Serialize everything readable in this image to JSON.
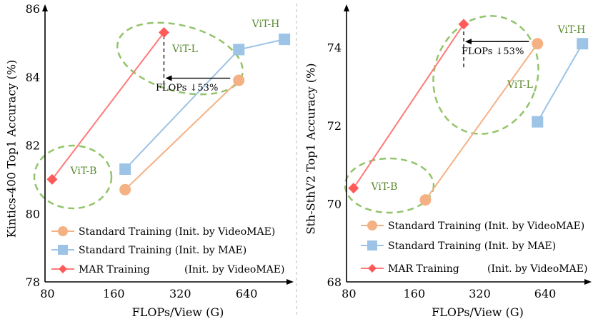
{
  "colors": {
    "videomae": "#f4b183",
    "videomae_line": "#f4b183",
    "mae": "#9dc3e6",
    "mae_line": "#9dc3e6",
    "mar": "#ff5a5a",
    "mar_line": "#ff7a7a",
    "group_ellipse": "#92c46a",
    "group_text": "#5a8a2e"
  },
  "chart_data": [
    {
      "type": "line",
      "xlabel": "FLOPs/View (G)",
      "ylabel": "Kintics-400 Top1 Accuracy (%)",
      "xscale": "log2",
      "xlim": [
        78,
        1000
      ],
      "ylim": [
        78,
        86
      ],
      "xticks": [
        80,
        160,
        320,
        640
      ],
      "xtick_labels": [
        "80",
        "160",
        "320",
        "640"
      ],
      "yticks": [
        78,
        80,
        82,
        84,
        86
      ],
      "ytick_labels": [
        "78",
        "80",
        "82",
        "84",
        "86"
      ],
      "series": [
        {
          "name": "Standard Training (Init. by VideoMAE)",
          "marker": "circle",
          "x": [
            180,
            590
          ],
          "y": [
            80.7,
            83.9
          ]
        },
        {
          "name": "Standard Training (Init. by MAE)",
          "marker": "square",
          "x": [
            180,
            590,
            950
          ],
          "y": [
            81.3,
            84.8,
            85.1
          ]
        },
        {
          "name": "MAR Training",
          "init": "(Init. by VideoMAE)",
          "marker": "diamond",
          "x": [
            84,
            270
          ],
          "y": [
            81.0,
            85.3
          ]
        }
      ],
      "legend": [
        {
          "label": "Standard Training (Init. by VideoMAE)"
        },
        {
          "label": "Standard Training (Init. by MAE)"
        },
        {
          "label": "MAR Training",
          "label2": "(Init. by VideoMAE)"
        }
      ],
      "groups": [
        {
          "label": "ViT-B",
          "center": [
            118,
            81.0
          ]
        },
        {
          "label": "ViT-L",
          "center": [
            420,
            84.6
          ]
        },
        {
          "label": "ViT-H",
          "center": [
            830,
            85.65
          ]
        }
      ],
      "annotation": {
        "text": "FLOPs ↓53%",
        "from": [
          590,
          83.9
        ],
        "to": [
          270,
          83.9
        ],
        "vline_x": 270,
        "vline_y": [
          83.6,
          85.3
        ]
      }
    },
    {
      "type": "line",
      "xlabel": "FLOPs/View (G)",
      "ylabel": "Sth-SthV2 Top1 Accuracy (%)",
      "xscale": "log2",
      "xlim": [
        78,
        1000
      ],
      "ylim": [
        68,
        75
      ],
      "xticks": [
        80,
        160,
        320,
        640
      ],
      "xtick_labels": [
        "80",
        "160",
        "320",
        "640"
      ],
      "yticks": [
        68,
        70,
        72,
        74
      ],
      "ytick_labels": [
        "68",
        "70",
        "72",
        "74"
      ],
      "series": [
        {
          "name": "Standard Training (Init. by VideoMAE)",
          "marker": "circle",
          "x": [
            180,
            590
          ],
          "y": [
            70.1,
            74.1
          ]
        },
        {
          "name": "Standard Training (Init. by MAE)",
          "marker": "square",
          "x": [
            590,
            950
          ],
          "y": [
            72.1,
            74.1
          ]
        },
        {
          "name": "MAR Training",
          "init": "(Init. by VideoMAE)",
          "marker": "diamond",
          "x": [
            84,
            270
          ],
          "y": [
            70.4,
            74.6
          ]
        }
      ],
      "legend": [
        {
          "label": "Standard Training (Init. by VideoMAE)"
        },
        {
          "label": "Standard Training (Init. by MAE)"
        },
        {
          "label": "MAR Training",
          "label2": "(Init. by VideoMAE)"
        }
      ],
      "groups": [
        {
          "label": "ViT-B",
          "center": [
            120,
            70.5
          ]
        },
        {
          "label": "ViT-L",
          "center": [
            560,
            73.0
          ]
        },
        {
          "label": "ViT-H",
          "center": [
            830,
            74.5
          ]
        }
      ],
      "annotation": {
        "text": "FLOPs ↓53%",
        "from": [
          590,
          74.1
        ],
        "to": [
          270,
          74.1
        ],
        "vline_x": 270,
        "vline_y": [
          73.5,
          74.6
        ]
      }
    }
  ]
}
